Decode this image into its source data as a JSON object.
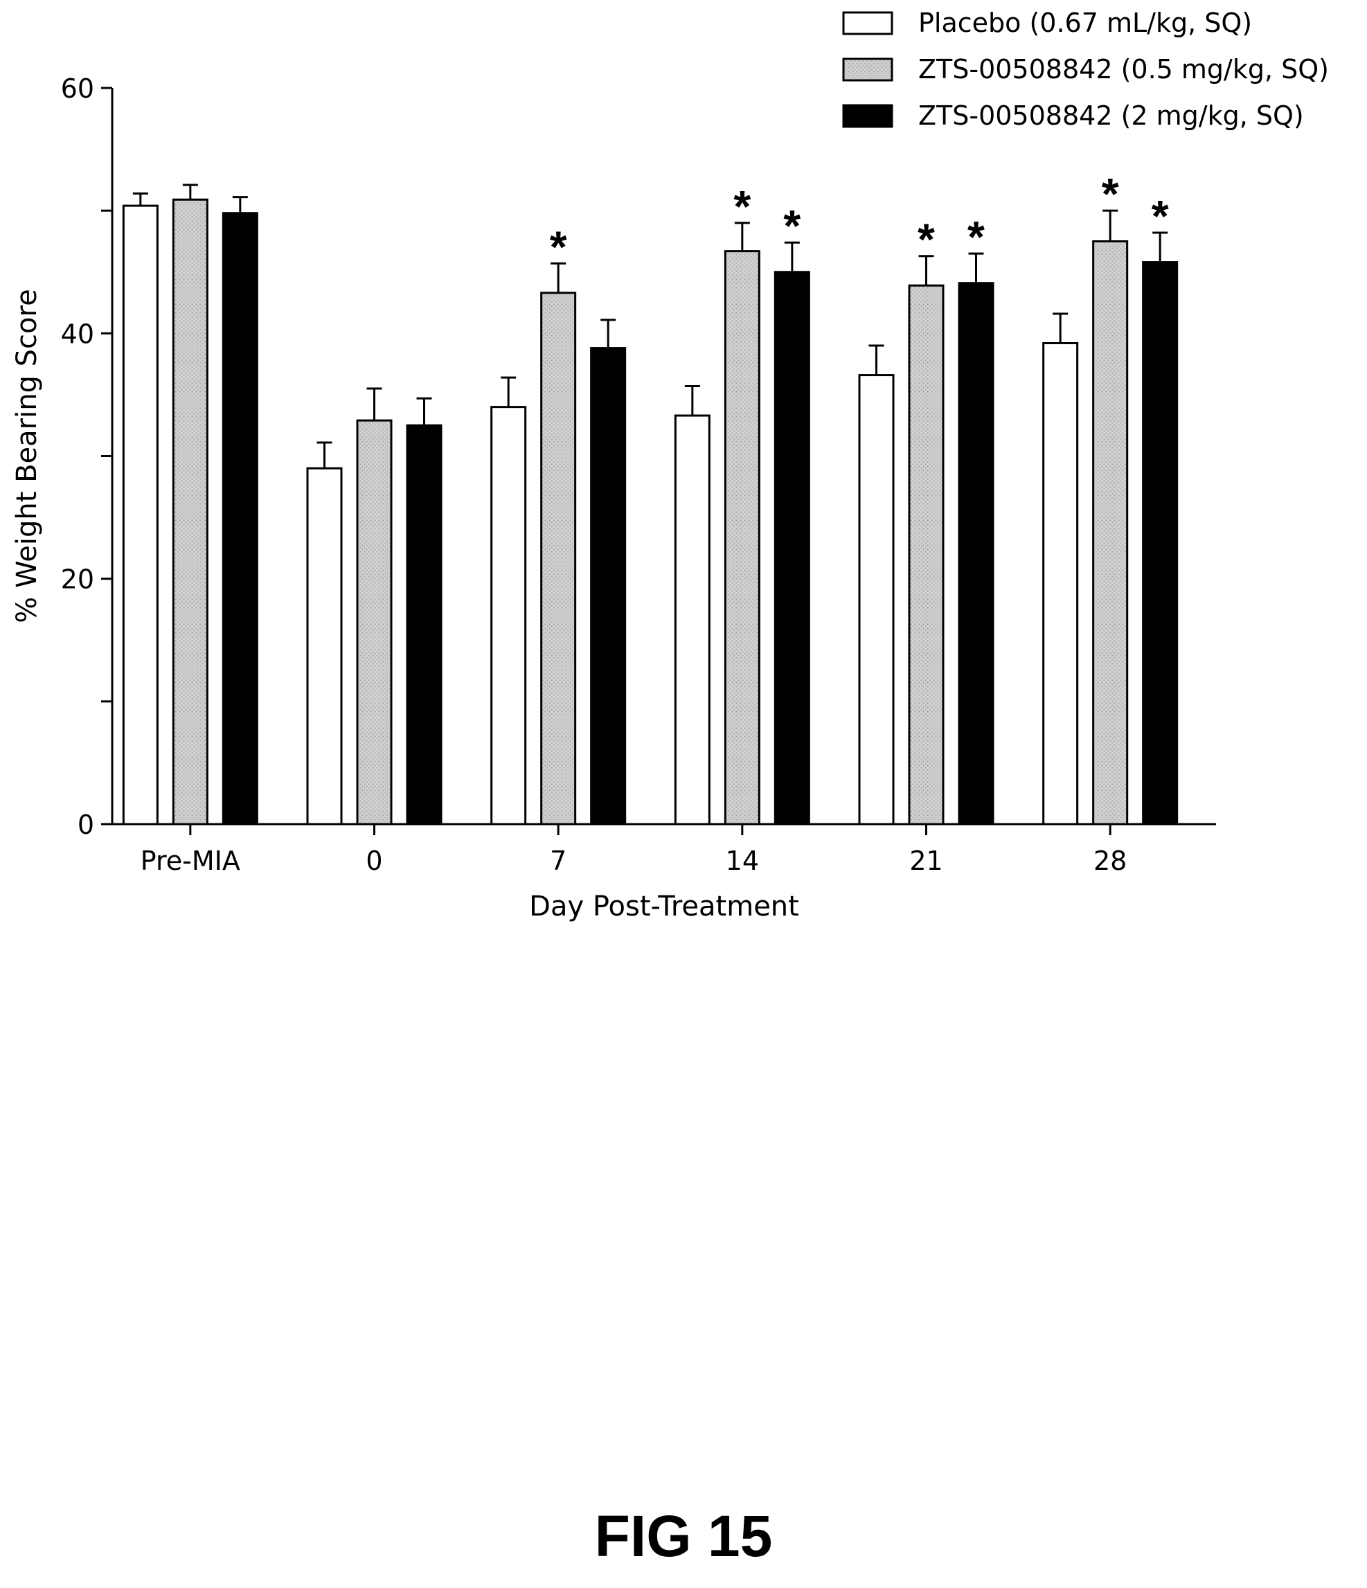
{
  "chart_data": {
    "type": "bar",
    "title": "",
    "xlabel": "Day Post-Treatment",
    "ylabel": "% Weight Bearing Score",
    "ylim": [
      0,
      60
    ],
    "yticks": [
      "0",
      "20",
      "40",
      "60"
    ],
    "categories": [
      "Pre-MIA",
      "0",
      "7",
      "14",
      "21",
      "28"
    ],
    "series": [
      {
        "name": "Placebo (0.67 mL/kg, SQ)",
        "fill": "#ffffff",
        "values": [
          50.4,
          29.0,
          34.0,
          33.3,
          36.6,
          39.2
        ],
        "errors": [
          1.0,
          2.1,
          2.4,
          2.4,
          2.4,
          2.4
        ],
        "significant": [
          false,
          false,
          false,
          false,
          false,
          false
        ]
      },
      {
        "name": "ZTS-00508842 (0.5 mg/kg, SQ)",
        "fill": "#c8c8c8",
        "values": [
          50.9,
          32.9,
          43.3,
          46.7,
          43.9,
          47.5
        ],
        "errors": [
          1.2,
          2.6,
          2.4,
          2.3,
          2.4,
          2.5
        ],
        "significant": [
          false,
          false,
          true,
          true,
          true,
          true
        ]
      },
      {
        "name": "ZTS-00508842 (2 mg/kg, SQ)",
        "fill": "#000000",
        "values": [
          49.8,
          32.5,
          38.8,
          45.0,
          44.1,
          45.8
        ],
        "errors": [
          1.3,
          2.2,
          2.3,
          2.4,
          2.4,
          2.4
        ],
        "significant": [
          false,
          false,
          false,
          true,
          true,
          true
        ]
      }
    ],
    "significance_marker": "*",
    "legend_position": "top-right",
    "grid": false
  },
  "figure_label": "FIG 15"
}
